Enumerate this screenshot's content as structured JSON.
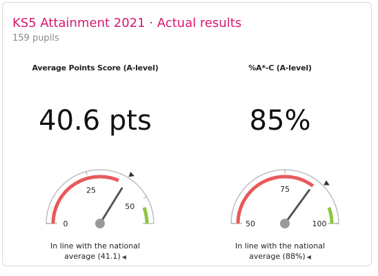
{
  "header": {
    "title": "KS5 Attainment 2021 · Actual results",
    "subtitle": "159 pupils"
  },
  "metrics": [
    {
      "label": "Average Points Score (A-level)",
      "value": "40.6 pts",
      "gauge": {
        "min": 0,
        "max": 60,
        "ticks": [
          "0",
          "25",
          "50"
        ],
        "tick_values": [
          0,
          25,
          50
        ],
        "value": 40.6,
        "national": 41.1
      },
      "comparison_line1": "In line with the national",
      "comparison_line2": "average (41.1)"
    },
    {
      "label": "%A*-C (A-level)",
      "value": "85%",
      "gauge": {
        "min": 50,
        "max": 100,
        "ticks": [
          "50",
          "75",
          "100"
        ],
        "tick_values": [
          50,
          75,
          100
        ],
        "value": 85,
        "national": 88
      },
      "comparison_line1": "In line with the national",
      "comparison_line2": "average (88%)"
    }
  ],
  "colors": {
    "title": "#d6186e",
    "below": "#e85a5a",
    "above": "#8cc63f",
    "track": "#bdbdbd",
    "needle": "#555555"
  }
}
